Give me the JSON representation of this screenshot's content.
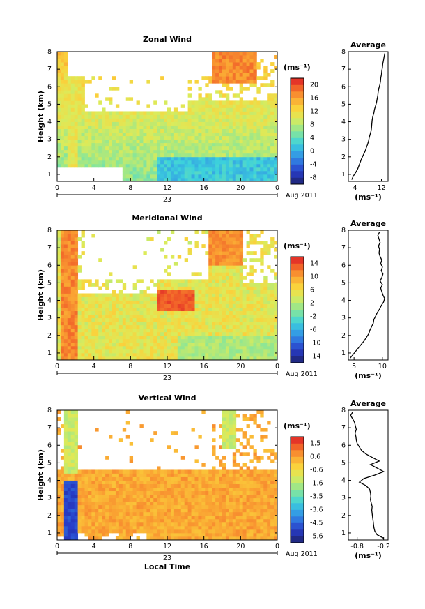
{
  "chart_data": [
    {
      "type": "heatmap",
      "title": "Zonal Wind",
      "ylabel": "Height (km)",
      "xlabel": "",
      "x_ticks": [
        "0",
        "4",
        "8",
        "12",
        "16",
        "20",
        "0"
      ],
      "date_label": "23",
      "month_label": "Aug 2011",
      "y_ticks": [
        "1",
        "2",
        "3",
        "4",
        "5",
        "6",
        "7",
        "8"
      ],
      "ylim": [
        0.6,
        8
      ],
      "xlim": [
        0,
        24
      ],
      "colorbar": {
        "unit": "(ms⁻¹)",
        "ticks": [
          "20",
          "16",
          "12",
          "8",
          "4",
          "0",
          "-4",
          "-8"
        ],
        "range": [
          -10,
          22
        ]
      },
      "profile": {
        "title": "Average",
        "x_ticks": [
          "4",
          "12"
        ],
        "xlabel": "(ms⁻¹)",
        "xlim": [
          2,
          14
        ],
        "height": [
          0.7,
          0.9,
          1.1,
          1.3,
          1.5,
          1.7,
          1.9,
          2.1,
          2.3,
          2.5,
          2.7,
          2.9,
          3.1,
          3.3,
          3.5,
          3.7,
          3.9,
          4.1,
          4.3,
          4.5,
          4.7,
          4.9,
          5.1,
          5.3,
          5.5,
          5.7,
          5.9,
          6.1,
          6.3,
          6.5,
          6.7,
          6.9,
          7.1,
          7.3,
          7.5,
          7.7,
          7.9
        ],
        "value": [
          3.0,
          3.5,
          4.2,
          4.8,
          5.2,
          5.6,
          6.0,
          6.5,
          7.0,
          7.4,
          7.8,
          8.1,
          8.3,
          8.6,
          8.9,
          9.0,
          9.1,
          9.2,
          9.4,
          9.7,
          9.9,
          10.2,
          10.5,
          10.7,
          10.9,
          11.0,
          11.2,
          11.5,
          11.7,
          11.8,
          12.0,
          12.1,
          12.3,
          12.4,
          12.6,
          12.8,
          13.0
        ]
      }
    },
    {
      "type": "heatmap",
      "title": "Meridional Wind",
      "ylabel": "Height (km)",
      "xlabel": "",
      "x_ticks": [
        "0",
        "4",
        "8",
        "12",
        "16",
        "20",
        "0"
      ],
      "date_label": "23",
      "month_label": "Aug 2011",
      "y_ticks": [
        "1",
        "2",
        "3",
        "4",
        "5",
        "6",
        "7",
        "8"
      ],
      "ylim": [
        0.6,
        8
      ],
      "xlim": [
        0,
        24
      ],
      "colorbar": {
        "unit": "(ms⁻¹)",
        "ticks": [
          "14",
          "10",
          "6",
          "2",
          "-2",
          "-6",
          "-10",
          "-14"
        ],
        "range": [
          -16,
          16
        ]
      },
      "profile": {
        "title": "Average",
        "x_ticks": [
          "5",
          "10"
        ],
        "xlabel": "(ms⁻¹)",
        "xlim": [
          4,
          11
        ],
        "height": [
          0.7,
          0.9,
          1.1,
          1.3,
          1.5,
          1.7,
          1.9,
          2.1,
          2.3,
          2.5,
          2.7,
          2.9,
          3.1,
          3.3,
          3.5,
          3.7,
          3.9,
          4.1,
          4.3,
          4.5,
          4.7,
          4.9,
          5.1,
          5.3,
          5.5,
          5.7,
          5.9,
          6.1,
          6.3,
          6.5,
          6.7,
          6.9,
          7.1,
          7.3,
          7.5,
          7.7,
          7.9
        ],
        "value": [
          4.3,
          4.8,
          5.3,
          5.8,
          6.3,
          6.8,
          7.2,
          7.6,
          7.8,
          8.1,
          8.4,
          8.5,
          8.8,
          9.1,
          9.5,
          9.8,
          10.2,
          10.4,
          10.1,
          9.9,
          9.7,
          10.0,
          9.6,
          9.9,
          10.1,
          9.8,
          10.0,
          9.7,
          9.9,
          9.6,
          9.4,
          9.5,
          9.3,
          9.6,
          9.4,
          9.2,
          9.5
        ]
      }
    },
    {
      "type": "heatmap",
      "title": "Vertical Wind",
      "ylabel": "Height (km)",
      "xlabel": "Local Time",
      "x_ticks": [
        "0",
        "4",
        "8",
        "12",
        "16",
        "20",
        "0"
      ],
      "date_label": "23",
      "month_label": "Aug 2011",
      "y_ticks": [
        "1",
        "2",
        "3",
        "4",
        "5",
        "6",
        "7",
        "8"
      ],
      "ylim": [
        0.6,
        8
      ],
      "xlim": [
        0,
        24
      ],
      "colorbar": {
        "unit": "(ms⁻¹)",
        "ticks": [
          "1.5",
          "0.6",
          "-0.6",
          "-1.6",
          "-3.5",
          "-3.6",
          "-4.5",
          "-5.6"
        ],
        "range": [
          -6,
          2
        ]
      },
      "profile": {
        "title": "Average",
        "x_ticks": [
          "-0.8",
          "-0.2"
        ],
        "xlabel": "(ms⁻¹)",
        "xlim": [
          -1.0,
          -0.1
        ],
        "height": [
          0.7,
          0.9,
          1.1,
          1.3,
          1.5,
          1.7,
          1.9,
          2.1,
          2.3,
          2.5,
          2.7,
          2.9,
          3.1,
          3.3,
          3.5,
          3.7,
          3.9,
          4.1,
          4.3,
          4.5,
          4.7,
          4.9,
          5.1,
          5.3,
          5.5,
          5.7,
          5.9,
          6.1,
          6.3,
          6.5,
          6.7,
          6.9,
          7.1,
          7.3,
          7.5,
          7.7,
          7.9
        ],
        "value": [
          -0.2,
          -0.35,
          -0.4,
          -0.42,
          -0.43,
          -0.44,
          -0.45,
          -0.46,
          -0.47,
          -0.46,
          -0.48,
          -0.5,
          -0.49,
          -0.5,
          -0.52,
          -0.6,
          -0.75,
          -0.65,
          -0.4,
          -0.2,
          -0.35,
          -0.5,
          -0.3,
          -0.45,
          -0.6,
          -0.7,
          -0.75,
          -0.8,
          -0.82,
          -0.83,
          -0.85,
          -0.82,
          -0.84,
          -0.86,
          -0.9,
          -0.95,
          -0.9
        ]
      }
    }
  ]
}
